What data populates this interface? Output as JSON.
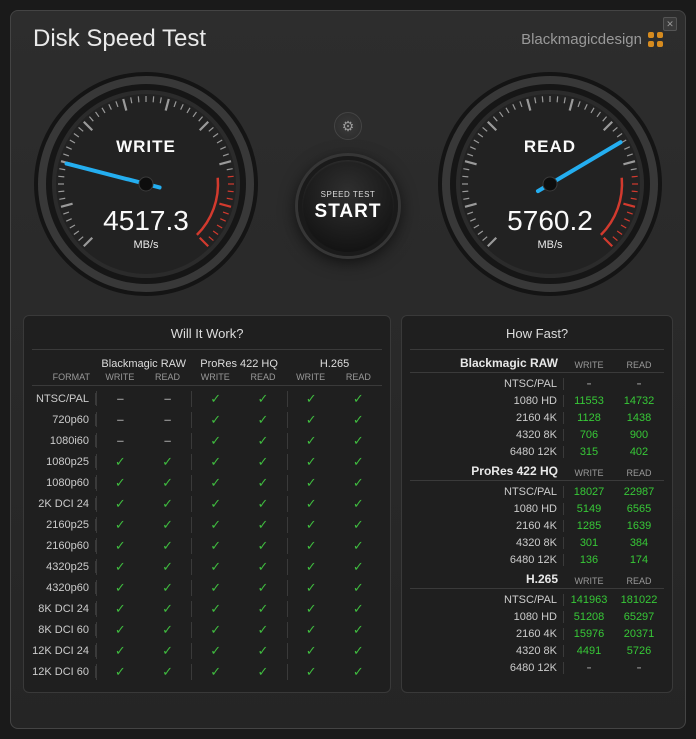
{
  "window": {
    "title": "Disk Speed Test",
    "brand": "Blackmagicdesign"
  },
  "gauges": {
    "write": {
      "label": "WRITE",
      "value": "4517.3",
      "unit": "MB/s",
      "needle_angle_deg": 22
    },
    "read": {
      "label": "READ",
      "value": "5760.2",
      "unit": "MB/s",
      "needle_angle_deg": 72
    }
  },
  "controls": {
    "start_small": "SPEED TEST",
    "start_big": "START"
  },
  "colors": {
    "background": "#252525",
    "panel": "#1f1f1f",
    "border": "#3a3a3a",
    "text": "#cccccc",
    "text_dim": "#999999",
    "green": "#37c837",
    "needle": "#24aef0",
    "tick": "#9a9a9a",
    "redzone": "#d23a2e",
    "orange": "#d68b1f"
  },
  "will_it_work": {
    "title": "Will It Work?",
    "codecs": [
      "Blackmagic RAW",
      "ProRes 422 HQ",
      "H.265"
    ],
    "subcols": [
      "WRITE",
      "READ"
    ],
    "format_col_label": "FORMAT",
    "rows": [
      {
        "fmt": "NTSC/PAL",
        "v": [
          "–",
          "–",
          "✓",
          "✓",
          "✓",
          "✓"
        ]
      },
      {
        "fmt": "720p60",
        "v": [
          "–",
          "–",
          "✓",
          "✓",
          "✓",
          "✓"
        ]
      },
      {
        "fmt": "1080i60",
        "v": [
          "–",
          "–",
          "✓",
          "✓",
          "✓",
          "✓"
        ]
      },
      {
        "fmt": "1080p25",
        "v": [
          "✓",
          "✓",
          "✓",
          "✓",
          "✓",
          "✓"
        ]
      },
      {
        "fmt": "1080p60",
        "v": [
          "✓",
          "✓",
          "✓",
          "✓",
          "✓",
          "✓"
        ]
      },
      {
        "fmt": "2K DCI 24",
        "v": [
          "✓",
          "✓",
          "✓",
          "✓",
          "✓",
          "✓"
        ]
      },
      {
        "fmt": "2160p25",
        "v": [
          "✓",
          "✓",
          "✓",
          "✓",
          "✓",
          "✓"
        ]
      },
      {
        "fmt": "2160p60",
        "v": [
          "✓",
          "✓",
          "✓",
          "✓",
          "✓",
          "✓"
        ]
      },
      {
        "fmt": "4320p25",
        "v": [
          "✓",
          "✓",
          "✓",
          "✓",
          "✓",
          "✓"
        ]
      },
      {
        "fmt": "4320p60",
        "v": [
          "✓",
          "✓",
          "✓",
          "✓",
          "✓",
          "✓"
        ]
      },
      {
        "fmt": "8K DCI 24",
        "v": [
          "✓",
          "✓",
          "✓",
          "✓",
          "✓",
          "✓"
        ]
      },
      {
        "fmt": "8K DCI 60",
        "v": [
          "✓",
          "✓",
          "✓",
          "✓",
          "✓",
          "✓"
        ]
      },
      {
        "fmt": "12K DCI 24",
        "v": [
          "✓",
          "✓",
          "✓",
          "✓",
          "✓",
          "✓"
        ]
      },
      {
        "fmt": "12K DCI 60",
        "v": [
          "✓",
          "✓",
          "✓",
          "✓",
          "✓",
          "✓"
        ]
      }
    ]
  },
  "how_fast": {
    "title": "How Fast?",
    "cols": [
      "WRITE",
      "READ"
    ],
    "sections": [
      {
        "codec": "Blackmagic RAW",
        "rows": [
          {
            "fmt": "NTSC/PAL",
            "w": "-",
            "r": "-"
          },
          {
            "fmt": "1080 HD",
            "w": "11553",
            "r": "14732"
          },
          {
            "fmt": "2160 4K",
            "w": "1128",
            "r": "1438"
          },
          {
            "fmt": "4320 8K",
            "w": "706",
            "r": "900"
          },
          {
            "fmt": "6480 12K",
            "w": "315",
            "r": "402"
          }
        ]
      },
      {
        "codec": "ProRes 422 HQ",
        "rows": [
          {
            "fmt": "NTSC/PAL",
            "w": "18027",
            "r": "22987"
          },
          {
            "fmt": "1080 HD",
            "w": "5149",
            "r": "6565"
          },
          {
            "fmt": "2160 4K",
            "w": "1285",
            "r": "1639"
          },
          {
            "fmt": "4320 8K",
            "w": "301",
            "r": "384"
          },
          {
            "fmt": "6480 12K",
            "w": "136",
            "r": "174"
          }
        ]
      },
      {
        "codec": "H.265",
        "rows": [
          {
            "fmt": "NTSC/PAL",
            "w": "141963",
            "r": "181022"
          },
          {
            "fmt": "1080 HD",
            "w": "51208",
            "r": "65297"
          },
          {
            "fmt": "2160 4K",
            "w": "15976",
            "r": "20371"
          },
          {
            "fmt": "4320 8K",
            "w": "4491",
            "r": "5726"
          },
          {
            "fmt": "6480 12K",
            "w": "-",
            "r": "-"
          }
        ]
      }
    ]
  }
}
